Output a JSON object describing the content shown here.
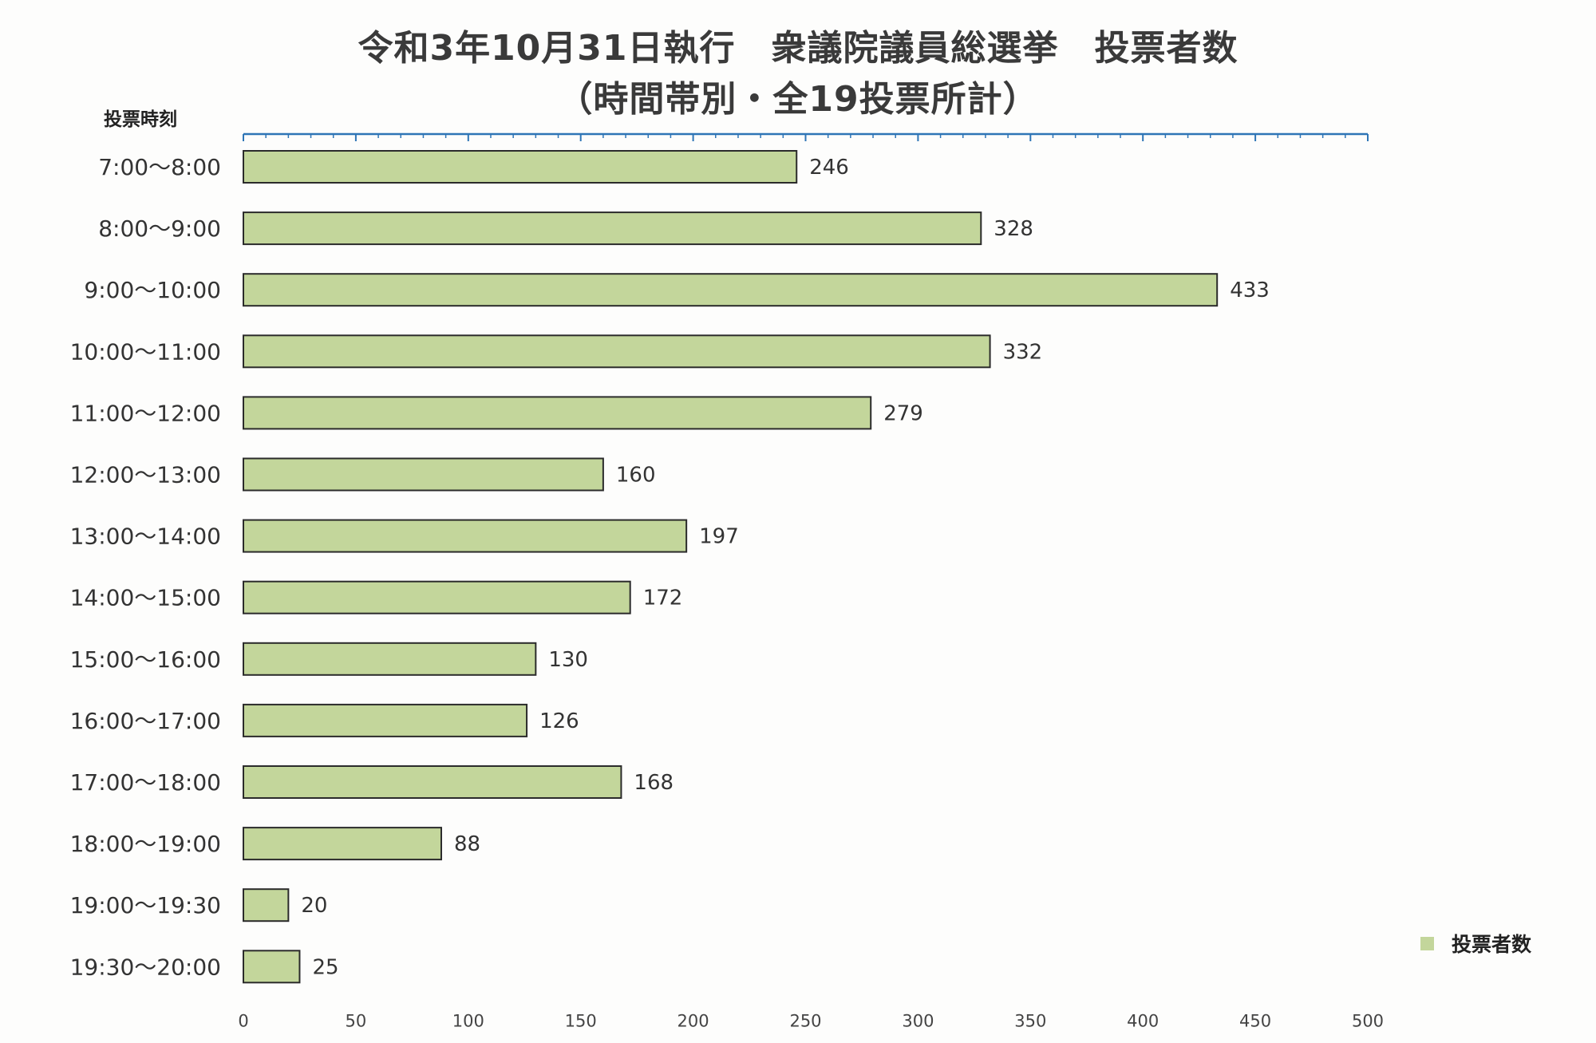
{
  "colors": {
    "bar_fill": "#c3d69b",
    "bar_stroke": "#2b2b2b",
    "axis_line": "#2e75b6",
    "text": "#333333"
  },
  "chart_data": {
    "type": "bar",
    "orientation": "horizontal",
    "title": "令和3年10月31日執行　衆議院議員総選挙　投票者数",
    "subtitle": "（時間帯別・全19投票所計）",
    "ylabel": "投票時刻",
    "xlabel": "",
    "xlim": [
      0,
      500
    ],
    "xticks": [
      0,
      50,
      100,
      150,
      200,
      250,
      300,
      350,
      400,
      450,
      500
    ],
    "grid": false,
    "legend_position": "bottom-right",
    "categories": [
      "7:00～8:00",
      "8:00～9:00",
      "9:00～10:00",
      "10:00～11:00",
      "11:00～12:00",
      "12:00～13:00",
      "13:00～14:00",
      "14:00～15:00",
      "15:00～16:00",
      "16:00～17:00",
      "17:00～18:00",
      "18:00～19:00",
      "19:00～19:30",
      "19:30～20:00"
    ],
    "series": [
      {
        "name": "投票者数",
        "values": [
          246,
          328,
          433,
          332,
          279,
          160,
          197,
          172,
          130,
          126,
          168,
          88,
          20,
          25
        ]
      }
    ]
  }
}
